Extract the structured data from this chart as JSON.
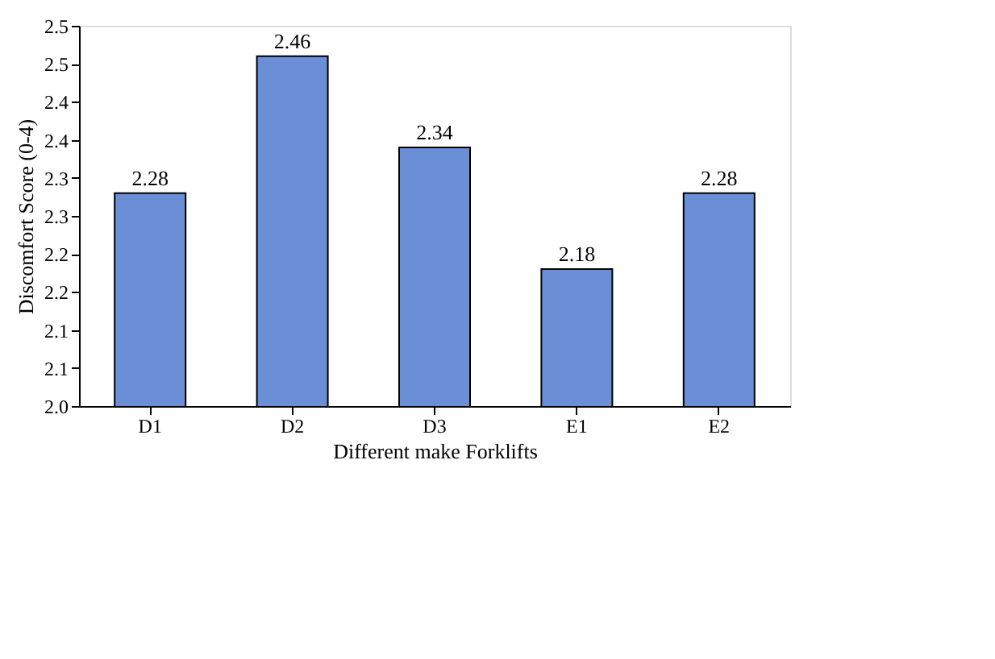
{
  "chart_data": {
    "type": "bar",
    "xlabel": "Different make Forklifts",
    "ylabel": "Discomfort Score (0-4)",
    "categories": [
      "D1",
      "D2",
      "D3",
      "E1",
      "E2"
    ],
    "values": [
      2.28,
      2.46,
      2.34,
      2.18,
      2.28
    ],
    "color": "#6a8fd6",
    "data_labels": true,
    "ylim": [
      2.0,
      2.5
    ],
    "yticks": [
      {
        "value": 2.0,
        "label": "2.0"
      },
      {
        "value": 2.05,
        "label": "2.1"
      },
      {
        "value": 2.1,
        "label": "2.1"
      },
      {
        "value": 2.15,
        "label": "2.2"
      },
      {
        "value": 2.2,
        "label": "2.2"
      },
      {
        "value": 2.25,
        "label": "2.3"
      },
      {
        "value": 2.3,
        "label": "2.3"
      },
      {
        "value": 2.35,
        "label": "2.4"
      },
      {
        "value": 2.4,
        "label": "2.4"
      },
      {
        "value": 2.45,
        "label": "2.5"
      },
      {
        "value": 2.5,
        "label": "2.5"
      }
    ],
    "grid": false
  }
}
